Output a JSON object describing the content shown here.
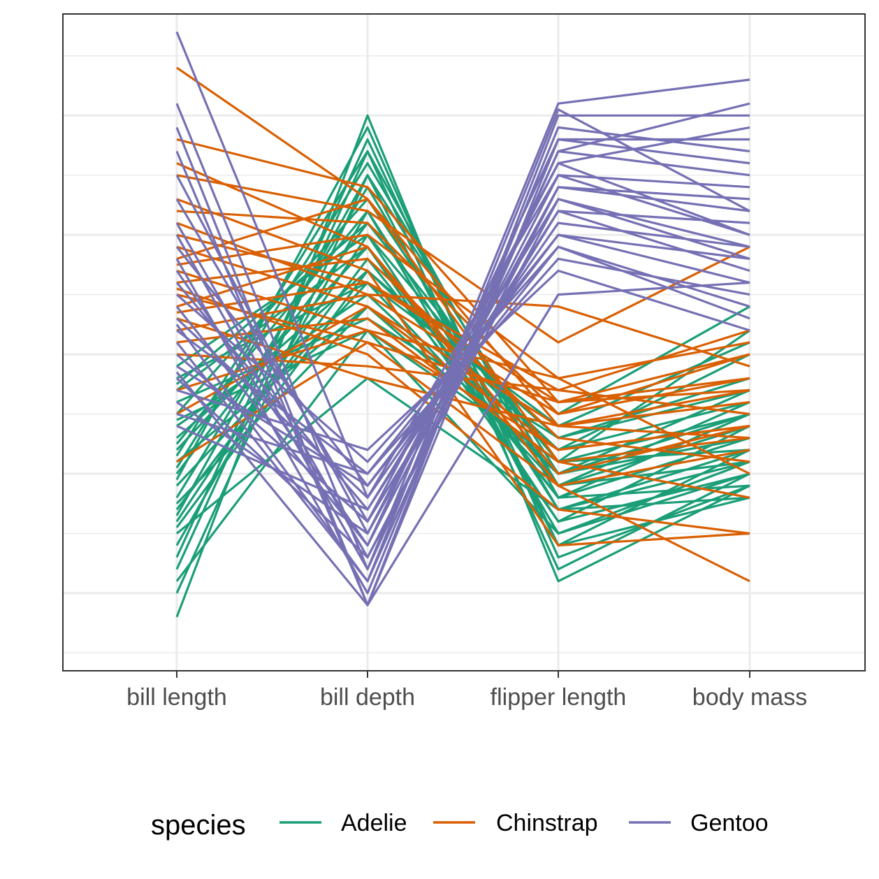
{
  "chart_data": {
    "type": "line",
    "subtype": "parallel-coordinates",
    "title": "",
    "xlabel": "",
    "ylabel": "",
    "categories": [
      "bill length",
      "bill depth",
      "flipper length",
      "body mass"
    ],
    "ylim": [
      -2.65,
      2.85
    ],
    "y_ticks_labeled": false,
    "grid": true,
    "legend": {
      "title": "species",
      "position": "bottom",
      "entries": [
        "Adelie",
        "Chinstrap",
        "Gentoo"
      ]
    },
    "colors": {
      "Adelie": "#1b9e77",
      "Chinstrap": "#d95f02",
      "Gentoo": "#7570b3"
    },
    "series": [
      {
        "name": "Adelie",
        "lines": [
          [
            -2.2,
            2.0,
            -1.9,
            -1.1
          ],
          [
            -2.0,
            1.5,
            -1.6,
            -1.2
          ],
          [
            -1.8,
            1.7,
            -1.8,
            -1.0
          ],
          [
            -1.6,
            1.2,
            -1.5,
            -0.9
          ],
          [
            -1.4,
            1.0,
            -1.4,
            -1.0
          ],
          [
            -1.3,
            0.8,
            -1.2,
            -0.7
          ],
          [
            -1.2,
            1.4,
            -1.3,
            -0.8
          ],
          [
            -1.1,
            0.6,
            -1.1,
            -0.6
          ],
          [
            -1.0,
            1.1,
            -0.9,
            -0.8
          ],
          [
            -0.9,
            0.4,
            -1.0,
            -0.5
          ],
          [
            -0.8,
            0.9,
            -1.2,
            -1.1
          ],
          [
            -0.7,
            0.7,
            -0.8,
            -0.4
          ],
          [
            -0.6,
            0.5,
            -1.0,
            -0.3
          ],
          [
            -0.5,
            1.3,
            -1.1,
            -0.9
          ],
          [
            -0.4,
            0.3,
            -0.7,
            -0.2
          ],
          [
            -0.3,
            0.9,
            -1.4,
            -0.6
          ],
          [
            -0.2,
            0.6,
            -0.6,
            0.1
          ],
          [
            -0.1,
            1.0,
            -0.9,
            -0.5
          ],
          [
            -1.5,
            -0.2,
            -1.3,
            -1.2
          ],
          [
            -1.7,
            1.8,
            -1.6,
            -0.8
          ],
          [
            -1.9,
            0.2,
            -1.5,
            -1.0
          ],
          [
            -0.95,
            1.6,
            -1.1,
            -0.4
          ],
          [
            -1.25,
            0.4,
            -0.8,
            0.0
          ],
          [
            -1.05,
            1.9,
            -1.7,
            -1.1
          ],
          [
            -0.55,
            0.2,
            -0.9,
            0.2
          ],
          [
            -1.35,
            1.5,
            -1.0,
            -0.7
          ],
          [
            -0.75,
            1.2,
            -1.3,
            -0.9
          ],
          [
            -1.45,
            0.7,
            -0.7,
            -0.3
          ],
          [
            -0.25,
            1.1,
            -0.5,
            0.4
          ],
          [
            -0.85,
            1.7,
            -1.2,
            -0.5
          ]
        ]
      },
      {
        "name": "Chinstrap",
        "lines": [
          [
            2.4,
            1.3,
            -0.6,
            -0.3
          ],
          [
            1.8,
            1.4,
            -0.4,
            0.0
          ],
          [
            1.5,
            1.2,
            0.1,
            0.9
          ],
          [
            1.3,
            0.7,
            -1.6,
            -1.5
          ],
          [
            1.2,
            1.1,
            -0.5,
            -0.2
          ],
          [
            1.0,
            0.6,
            -0.3,
            0.2
          ],
          [
            0.9,
            0.4,
            -0.8,
            -0.6
          ],
          [
            0.8,
            1.3,
            -0.9,
            -0.7
          ],
          [
            0.7,
            0.2,
            -0.2,
            0.1
          ],
          [
            0.6,
            0.8,
            -0.7,
            -0.9
          ],
          [
            0.5,
            0.1,
            -0.4,
            -0.3
          ],
          [
            0.4,
            0.9,
            -1.1,
            -0.8
          ],
          [
            0.3,
            -0.2,
            -0.6,
            -0.4
          ],
          [
            0.2,
            0.5,
            -0.5,
            0.0
          ],
          [
            0.1,
            0.3,
            -0.9,
            -1.2
          ],
          [
            0.0,
            -0.1,
            -0.3,
            -0.5
          ],
          [
            -0.3,
            0.2,
            -0.8,
            -0.6
          ],
          [
            -0.5,
            0.4,
            -0.6,
            -0.7
          ],
          [
            -0.9,
            0.1,
            -1.1,
            -1.9
          ],
          [
            1.6,
            0.9,
            -1.0,
            -0.6
          ],
          [
            1.1,
            0.5,
            0.4,
            -0.1
          ],
          [
            0.75,
            1.0,
            -0.2,
            -1.0
          ],
          [
            0.55,
            0.0,
            -1.3,
            -1.5
          ],
          [
            0.35,
            0.6,
            -0.4,
            -0.2
          ]
        ]
      },
      {
        "name": "Gentoo",
        "lines": [
          [
            2.7,
            -1.2,
            1.5,
            1.0
          ],
          [
            2.1,
            -1.8,
            2.1,
            2.3
          ],
          [
            1.9,
            -2.1,
            1.8,
            1.6
          ],
          [
            1.5,
            -1.5,
            1.4,
            1.2
          ],
          [
            1.3,
            -1.4,
            1.6,
            1.9
          ],
          [
            1.1,
            -1.7,
            1.3,
            0.8
          ],
          [
            0.9,
            -1.1,
            1.0,
            0.6
          ],
          [
            0.8,
            -2.0,
            1.9,
            1.7
          ],
          [
            0.6,
            -1.3,
            1.2,
            1.1
          ],
          [
            0.5,
            -0.9,
            0.9,
            0.4
          ],
          [
            0.4,
            -1.6,
            1.5,
            1.4
          ],
          [
            0.3,
            -1.2,
            1.1,
            0.9
          ],
          [
            0.2,
            -1.0,
            0.8,
            0.5
          ],
          [
            0.1,
            -1.9,
            1.7,
            1.5
          ],
          [
            0.0,
            -1.4,
            1.2,
            0.7
          ],
          [
            -0.1,
            -1.1,
            0.9,
            0.3
          ],
          [
            -0.2,
            -1.7,
            1.4,
            1.3
          ],
          [
            -0.3,
            -0.8,
            0.7,
            0.2
          ],
          [
            -0.4,
            -1.5,
            1.6,
            1.0
          ],
          [
            -0.5,
            -1.0,
            1.0,
            0.8
          ],
          [
            -0.6,
            -1.3,
            1.3,
            0.9
          ],
          [
            1.7,
            -2.1,
            2.0,
            2.0
          ],
          [
            1.0,
            -1.8,
            1.7,
            2.1
          ],
          [
            0.7,
            -1.6,
            1.8,
            1.8
          ],
          [
            -0.15,
            -2.1,
            0.5,
            0.6
          ],
          [
            0.25,
            -1.9,
            2.05,
            1.2
          ]
        ]
      }
    ]
  }
}
